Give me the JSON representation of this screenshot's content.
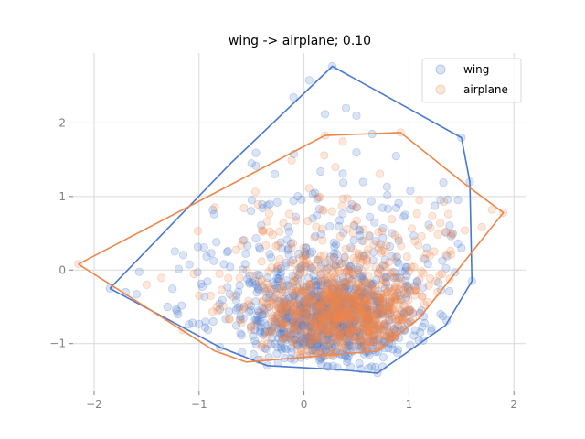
{
  "chart_data": {
    "type": "scatter",
    "title": "wing -> airplane; 0.10",
    "xlabel": "",
    "ylabel": "",
    "xlim": [
      -2.2,
      2.12
    ],
    "ylim": [
      -1.65,
      2.95
    ],
    "x_ticks": [
      -2,
      -1,
      0,
      1,
      2
    ],
    "y_ticks": [
      -1,
      0,
      1,
      2
    ],
    "x_tick_labels": [
      "−2",
      "−1",
      "0",
      "1",
      "2"
    ],
    "y_tick_labels": [
      "−1",
      "0",
      "1",
      "2"
    ],
    "grid": true,
    "legend_position": "top-right",
    "series": [
      {
        "name": "wing",
        "color": "#4878cf",
        "marker": "circle",
        "alpha": 0.2,
        "cluster": {
          "center": [
            0.25,
            -0.65
          ],
          "spread": [
            0.42,
            0.32
          ],
          "count": 700
        },
        "scatter": {
          "center": [
            0.2,
            -0.1
          ],
          "spread": [
            0.75,
            0.7
          ],
          "count": 300
        },
        "hull": [
          [
            -1.85,
            -0.25
          ],
          [
            -0.8,
            -1.05
          ],
          [
            -0.35,
            -1.3
          ],
          [
            0.3,
            -1.35
          ],
          [
            0.7,
            -1.4
          ],
          [
            1.35,
            -0.75
          ],
          [
            1.6,
            -0.15
          ],
          [
            1.58,
            1.2
          ],
          [
            1.5,
            1.8
          ],
          [
            0.27,
            2.77
          ],
          [
            -0.7,
            1.45
          ],
          [
            -1.85,
            -0.25
          ]
        ],
        "points": [
          [
            -1.85,
            -0.25
          ],
          [
            -1.7,
            -0.3
          ],
          [
            -1.3,
            -0.5
          ],
          [
            -1.2,
            -0.6
          ],
          [
            -0.8,
            -1.05
          ],
          [
            0.27,
            2.77
          ],
          [
            0.05,
            2.58
          ],
          [
            0.4,
            2.2
          ],
          [
            0.5,
            2.1
          ],
          [
            1.5,
            1.8
          ],
          [
            1.58,
            1.2
          ],
          [
            1.6,
            -0.15
          ],
          [
            0.7,
            -1.4
          ],
          [
            -0.35,
            -1.3
          ],
          [
            -0.1,
            2.35
          ],
          [
            0.65,
            1.85
          ],
          [
            -0.5,
            1.45
          ],
          [
            0.5,
            1.6
          ],
          [
            1.3,
            0.95
          ],
          [
            1.5,
            0.3
          ]
        ]
      },
      {
        "name": "airplane",
        "color": "#ee854a",
        "marker": "circle",
        "alpha": 0.2,
        "cluster": {
          "center": [
            0.4,
            -0.6
          ],
          "spread": [
            0.4,
            0.3
          ],
          "count": 700
        },
        "scatter": {
          "center": [
            0.3,
            0.0
          ],
          "spread": [
            0.65,
            0.6
          ],
          "count": 250
        },
        "hull": [
          [
            -2.15,
            0.08
          ],
          [
            -0.85,
            -1.1
          ],
          [
            -0.55,
            -1.25
          ],
          [
            0.7,
            -1.1
          ],
          [
            1.1,
            -0.65
          ],
          [
            1.9,
            0.78
          ],
          [
            1.55,
            1.15
          ],
          [
            0.92,
            1.87
          ],
          [
            0.2,
            1.83
          ],
          [
            -2.15,
            0.08
          ]
        ],
        "points": [
          [
            -2.15,
            0.08
          ],
          [
            -1.5,
            -0.2
          ],
          [
            1.9,
            0.78
          ],
          [
            0.92,
            1.87
          ],
          [
            0.2,
            1.83
          ],
          [
            0.3,
            1.4
          ],
          [
            1.1,
            0.95
          ],
          [
            1.4,
            0.5
          ],
          [
            -0.85,
            0.85
          ],
          [
            -1.0,
            -0.35
          ]
        ]
      }
    ]
  }
}
